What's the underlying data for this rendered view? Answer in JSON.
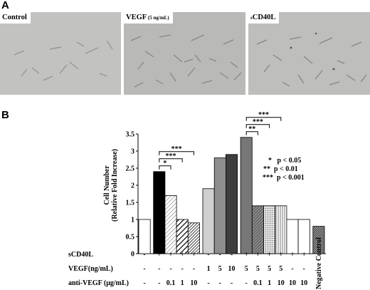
{
  "panel_a_label": "A",
  "panel_b_label": "B",
  "micrographs": [
    {
      "label_main": "Control",
      "label_sub": "",
      "label_suffix": ""
    },
    {
      "label_main": "VEGF",
      "label_sub": " (5 ng/mL)",
      "label_suffix": ""
    },
    {
      "label_main": "",
      "label_sub": "s",
      "label_suffix": "CD40L"
    }
  ],
  "chart_data": {
    "type": "bar",
    "ylabel": "Cell Number",
    "ylabel_sub": "(Relative Fold Increase)",
    "ylim": [
      0,
      3.5
    ],
    "yticks": [
      "0",
      "0.5",
      "1",
      "1.5",
      "2",
      "2.5",
      "3",
      "3.5"
    ],
    "grid": false,
    "values": [
      1.0,
      2.4,
      1.7,
      1.0,
      0.9,
      1.9,
      2.8,
      2.9,
      3.4,
      1.4,
      1.4,
      1.4,
      1.0,
      1.0,
      0.8
    ],
    "fills": [
      "white",
      "black",
      "diag-light",
      "hatch-bw",
      "diag-dense",
      "lightgray",
      "gray",
      "darkgray",
      "midgray",
      "darkhatch",
      "dots",
      "vlines",
      "white",
      "white",
      "checker"
    ],
    "row_labels": [
      "sCD40L",
      "VEGF(ng/mL)",
      "anti-VEGF (μg/mL)"
    ],
    "rows": [
      [
        "-",
        "+",
        "+",
        "+",
        "+",
        "-",
        "-",
        "-",
        "+",
        "+",
        "+",
        "+",
        "+",
        "+",
        ""
      ],
      [
        "-",
        "-",
        "-",
        "-",
        "-",
        "1",
        "5",
        "10",
        "5",
        "5",
        "5",
        "5",
        "-",
        "-",
        ""
      ],
      [
        "-",
        "-",
        "0.1",
        "1",
        "10",
        "-",
        "-",
        "-",
        "-",
        "0.1",
        "1",
        "10",
        "10",
        "10",
        ""
      ]
    ],
    "negative_control_label": "Negative Control",
    "significance_brackets": [
      {
        "from": 1,
        "to": 2,
        "label": "*"
      },
      {
        "from": 1,
        "to": 3,
        "label": "***"
      },
      {
        "from": 1,
        "to": 4,
        "label": "***"
      },
      {
        "from": 8,
        "to": 9,
        "label": "**"
      },
      {
        "from": 8,
        "to": 10,
        "label": "***"
      },
      {
        "from": 8,
        "to": 11,
        "label": "***"
      }
    ],
    "annotations": [
      "*   p < 0.05",
      "**  p < 0.01",
      "***  p < 0.001"
    ]
  }
}
